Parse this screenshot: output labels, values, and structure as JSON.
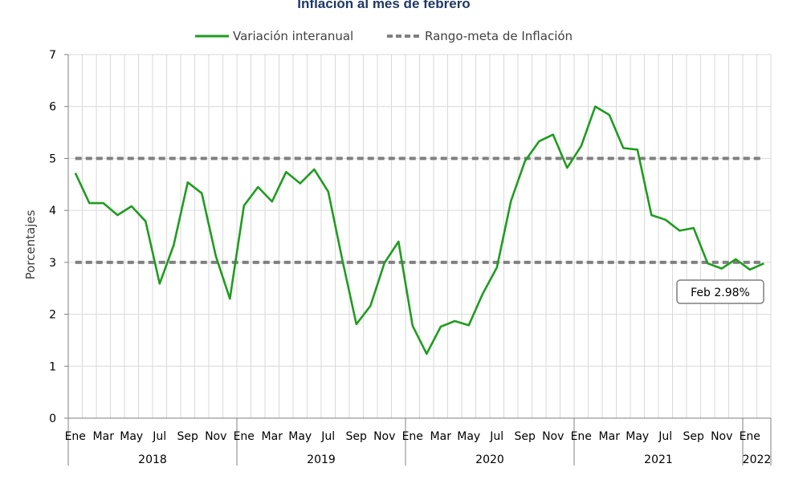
{
  "chart_data": {
    "type": "line",
    "title": "Inflación al mes de febrero",
    "ylabel": "Porcentajes",
    "ylim": [
      0,
      7
    ],
    "y_ticks": [
      "0",
      "1",
      "2",
      "3",
      "4",
      "5",
      "6",
      "7"
    ],
    "grid": true,
    "legend_position": "top-center",
    "x_month_labels": [
      "Ene",
      "Mar",
      "May",
      "Jul",
      "Sep",
      "Nov",
      "Ene",
      "Mar",
      "May",
      "Jul",
      "Sep",
      "Nov",
      "Ene",
      "Mar",
      "May",
      "Jul",
      "Sep",
      "Nov",
      "Ene",
      "Mar",
      "May",
      "Jul",
      "Sep",
      "Nov",
      "Ene"
    ],
    "x_year_labels": [
      "2018",
      "2019",
      "2020",
      "2021",
      "2022"
    ],
    "x": [
      "Ene 2018",
      "Feb 2018",
      "Mar 2018",
      "Abr 2018",
      "May 2018",
      "Jun 2018",
      "Jul 2018",
      "Ago 2018",
      "Sep 2018",
      "Oct 2018",
      "Nov 2018",
      "Dic 2018",
      "Ene 2019",
      "Feb 2019",
      "Mar 2019",
      "Abr 2019",
      "May 2019",
      "Jun 2019",
      "Jul 2019",
      "Ago 2019",
      "Sep 2019",
      "Oct 2019",
      "Nov 2019",
      "Dic 2019",
      "Ene 2020",
      "Feb 2020",
      "Mar 2020",
      "Abr 2020",
      "May 2020",
      "Jun 2020",
      "Jul 2020",
      "Ago 2020",
      "Sep 2020",
      "Oct 2020",
      "Nov 2020",
      "Dic 2020",
      "Ene 2021",
      "Feb 2021",
      "Mar 2021",
      "Abr 2021",
      "May 2021",
      "Jun 2021",
      "Jul 2021",
      "Ago 2021",
      "Sep 2021",
      "Oct 2021",
      "Nov 2021",
      "Dic 2021",
      "Ene 2022",
      "Feb 2022"
    ],
    "series": [
      {
        "name": "Variación interanual",
        "color": "#1f9c1f",
        "style": "solid",
        "values": [
          4.72,
          4.14,
          4.14,
          3.91,
          4.08,
          3.79,
          2.59,
          3.33,
          4.54,
          4.33,
          3.12,
          2.3,
          4.09,
          4.45,
          4.17,
          4.74,
          4.52,
          4.79,
          4.36,
          3.05,
          1.81,
          2.16,
          2.99,
          3.4,
          1.78,
          1.24,
          1.76,
          1.87,
          1.79,
          2.4,
          2.9,
          4.18,
          4.95,
          5.33,
          5.46,
          4.82,
          5.24,
          6.0,
          5.84,
          5.2,
          5.17,
          3.91,
          3.82,
          3.61,
          3.66,
          2.98,
          2.88,
          3.06,
          2.86,
          2.98
        ]
      },
      {
        "name": "Rango-meta de Inflación",
        "color": "#808080",
        "style": "dashed",
        "lines": [
          3,
          5
        ]
      }
    ],
    "annotations": [
      {
        "text": "Feb 2.98%",
        "x": "Feb 2022",
        "y": 2.98
      }
    ]
  }
}
